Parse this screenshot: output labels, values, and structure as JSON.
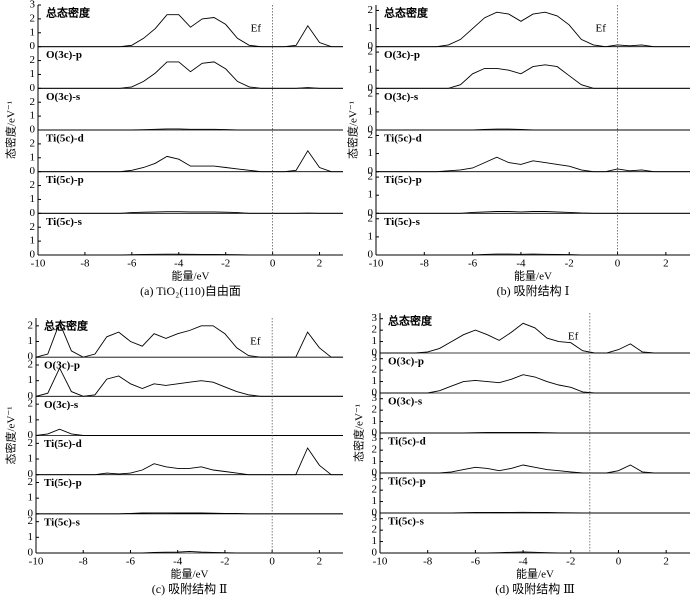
{
  "chart_data": [
    {
      "type": "line",
      "caption": "(a) TiO₂(110)自由面",
      "xlabel": "能量/eV",
      "ylabel": "态密度/eV⁻¹",
      "ef_label": "Ef",
      "ef_x": 0,
      "xlim": [
        -10,
        3
      ],
      "xticks": [
        -10,
        -8,
        -6,
        -4,
        -2,
        0,
        2
      ],
      "x": [
        -10,
        -9.5,
        -9,
        -8.5,
        -8,
        -7.5,
        -7,
        -6.5,
        -6,
        -5.5,
        -5,
        -4.5,
        -4,
        -3.5,
        -3,
        -2.5,
        -2,
        -1.5,
        -1,
        -0.5,
        0,
        0.5,
        1,
        1.5,
        2,
        2.5,
        3
      ],
      "series": [
        {
          "name": "总态密度",
          "color": "#000000",
          "ylim": [
            0,
            3
          ],
          "yticks": [
            0,
            1,
            2,
            3
          ],
          "values": [
            0,
            0,
            0,
            0,
            0,
            0,
            0,
            0,
            0.1,
            0.6,
            1.3,
            2.3,
            2.3,
            1.4,
            2.0,
            2.1,
            1.6,
            0.6,
            0.1,
            0,
            0,
            0,
            0.1,
            1.5,
            0.3,
            0,
            0
          ]
        },
        {
          "name": "O(3c)-p",
          "color": "#000000",
          "ylim": [
            0,
            3
          ],
          "yticks": [
            0,
            1,
            2
          ],
          "values": [
            0,
            0,
            0,
            0,
            0,
            0,
            0,
            0,
            0.1,
            0.5,
            1.1,
            1.9,
            1.9,
            1.2,
            1.8,
            1.9,
            1.4,
            0.5,
            0.1,
            0,
            0,
            0,
            0,
            0.05,
            0,
            0,
            0
          ]
        },
        {
          "name": "O(3c)-s",
          "color": "#000000",
          "ylim": [
            0,
            3
          ],
          "yticks": [
            0,
            1,
            2
          ],
          "values": [
            0,
            0,
            0,
            0,
            0,
            0,
            0,
            0,
            0,
            0.02,
            0.05,
            0.08,
            0.08,
            0.05,
            0.05,
            0.05,
            0.03,
            0,
            0,
            0,
            0,
            0,
            0,
            0,
            0,
            0,
            0
          ]
        },
        {
          "name": "Ti(5c)-d",
          "color": "#000000",
          "ylim": [
            0,
            3
          ],
          "yticks": [
            0,
            1,
            2
          ],
          "values": [
            0,
            0,
            0,
            0,
            0,
            0,
            0,
            0,
            0.1,
            0.3,
            0.6,
            1.1,
            0.9,
            0.4,
            0.4,
            0.4,
            0.3,
            0.2,
            0.1,
            0,
            0,
            0,
            0.1,
            1.5,
            0.3,
            0,
            0
          ]
        },
        {
          "name": "Ti(5c)-p",
          "color": "#000000",
          "ylim": [
            0,
            3
          ],
          "yticks": [
            0,
            1,
            2
          ],
          "values": [
            0,
            0,
            0,
            0,
            0,
            0,
            0,
            0,
            0.05,
            0.08,
            0.1,
            0.12,
            0.12,
            0.1,
            0.1,
            0.1,
            0.08,
            0.05,
            0,
            0,
            0,
            0,
            0,
            0.02,
            0,
            0,
            0
          ]
        },
        {
          "name": "Ti(5c)-s",
          "color": "#000000",
          "ylim": [
            0,
            3
          ],
          "yticks": [
            0,
            1,
            2
          ],
          "values": [
            0,
            0,
            0,
            0,
            0,
            0,
            0,
            0,
            0.02,
            0.04,
            0.05,
            0.06,
            0.06,
            0.05,
            0.04,
            0.04,
            0.03,
            0.02,
            0,
            0,
            0,
            0,
            0,
            0,
            0,
            0,
            0
          ]
        }
      ]
    },
    {
      "type": "line",
      "caption": "(b) 吸附结构 Ⅰ",
      "xlabel": "能量/eV",
      "ylabel": "态密度/eV⁻¹",
      "ef_label": "Ef",
      "ef_x": 0,
      "xlim": [
        -10,
        3
      ],
      "xticks": [
        -10,
        -8,
        -6,
        -4,
        -2,
        0,
        2
      ],
      "x": [
        -10,
        -9.5,
        -9,
        -8.5,
        -8,
        -7.5,
        -7,
        -6.5,
        -6,
        -5.5,
        -5,
        -4.5,
        -4,
        -3.5,
        -3,
        -2.5,
        -2,
        -1.5,
        -1,
        -0.5,
        0,
        0.5,
        1,
        1.5,
        2,
        2.5,
        3
      ],
      "series": [
        {
          "name": "总态密度",
          "color": "#000000",
          "ylim": [
            0,
            2.3
          ],
          "yticks": [
            0,
            1,
            2
          ],
          "values": [
            0,
            0,
            0,
            0,
            0,
            0,
            0.1,
            0.4,
            1.0,
            1.6,
            1.9,
            1.8,
            1.4,
            1.8,
            1.9,
            1.7,
            1.2,
            0.4,
            0.1,
            0,
            0.1,
            0.05,
            0.1,
            0,
            0,
            0,
            0
          ]
        },
        {
          "name": "O(3c)-p",
          "color": "#000000",
          "ylim": [
            0,
            2.3
          ],
          "yticks": [
            0,
            1,
            2
          ],
          "values": [
            0,
            0,
            0,
            0,
            0,
            0,
            0,
            0.2,
            0.8,
            1.1,
            1.1,
            1.0,
            0.8,
            1.2,
            1.3,
            1.2,
            0.7,
            0.2,
            0,
            0,
            0,
            0,
            0,
            0,
            0,
            0,
            0
          ]
        },
        {
          "name": "O(3c)-s",
          "color": "#000000",
          "ylim": [
            0,
            2.3
          ],
          "yticks": [
            0,
            1,
            2
          ],
          "values": [
            0,
            0,
            0,
            0,
            0,
            0,
            0,
            0,
            0,
            0.03,
            0.05,
            0.05,
            0.03,
            0,
            0,
            0,
            0,
            0,
            0,
            0,
            0,
            0,
            0,
            0,
            0,
            0,
            0
          ]
        },
        {
          "name": "Ti(5c)-d",
          "color": "#000000",
          "ylim": [
            0,
            2.3
          ],
          "yticks": [
            0,
            1,
            2
          ],
          "values": [
            0,
            0,
            0,
            0,
            0,
            0,
            0.05,
            0.1,
            0.2,
            0.5,
            0.8,
            0.5,
            0.4,
            0.6,
            0.5,
            0.4,
            0.3,
            0.1,
            0,
            0,
            0.15,
            0.05,
            0.1,
            0,
            0,
            0,
            0
          ]
        },
        {
          "name": "Ti(5c)-p",
          "color": "#000000",
          "ylim": [
            0,
            2.3
          ],
          "yticks": [
            0,
            1,
            2
          ],
          "values": [
            0,
            0,
            0,
            0,
            0,
            0,
            0,
            0,
            0.05,
            0.08,
            0.1,
            0.1,
            0.08,
            0.1,
            0.1,
            0.08,
            0.05,
            0.02,
            0,
            0,
            0,
            0,
            0,
            0,
            0,
            0,
            0
          ]
        },
        {
          "name": "Ti(5c)-s",
          "color": "#000000",
          "ylim": [
            0,
            2.3
          ],
          "yticks": [
            0,
            1,
            2
          ],
          "values": [
            0,
            0,
            0,
            0,
            0,
            0,
            0,
            0,
            0,
            0.03,
            0.05,
            0.05,
            0.04,
            0.05,
            0.04,
            0.03,
            0.02,
            0,
            0,
            0,
            0,
            0,
            0,
            0,
            0,
            0,
            0
          ]
        }
      ]
    },
    {
      "type": "line",
      "caption": "(c) 吸附结构 Ⅱ",
      "xlabel": "能量/eV",
      "ylabel": "态密度/eV⁻¹",
      "ef_label": "Ef",
      "ef_x": 0,
      "xlim": [
        -10,
        3
      ],
      "xticks": [
        -10,
        -8,
        -6,
        -4,
        -2,
        0,
        2
      ],
      "x": [
        -10,
        -9.5,
        -9,
        -8.5,
        -8,
        -7.5,
        -7,
        -6.5,
        -6,
        -5.5,
        -5,
        -4.5,
        -4,
        -3.5,
        -3,
        -2.5,
        -2,
        -1.5,
        -1,
        -0.5,
        0,
        0.5,
        1,
        1.5,
        2,
        2.5,
        3
      ],
      "series": [
        {
          "name": "总态密度",
          "color": "#000000",
          "ylim": [
            0,
            2.5
          ],
          "yticks": [
            0,
            1,
            2
          ],
          "values": [
            0,
            0.2,
            2.2,
            0.4,
            0,
            0.2,
            1.3,
            1.6,
            1.0,
            0.7,
            1.5,
            1.2,
            1.5,
            1.7,
            2.0,
            2.0,
            1.5,
            0.6,
            0.1,
            0,
            0,
            0,
            0,
            1.6,
            0.6,
            0,
            0
          ]
        },
        {
          "name": "O(3c)-p",
          "color": "#000000",
          "ylim": [
            0,
            2.5
          ],
          "yticks": [
            0,
            1,
            2
          ],
          "values": [
            0,
            0.2,
            1.8,
            0.3,
            0,
            0.1,
            1.1,
            1.3,
            0.8,
            0.5,
            0.8,
            0.7,
            0.8,
            0.9,
            1.0,
            0.9,
            0.6,
            0.3,
            0.1,
            0,
            0,
            0,
            0,
            0,
            0,
            0,
            0
          ]
        },
        {
          "name": "O(3c)-s",
          "color": "#000000",
          "ylim": [
            0,
            2.5
          ],
          "yticks": [
            0,
            1,
            2
          ],
          "values": [
            0,
            0.1,
            0.4,
            0.1,
            0,
            0,
            0,
            0,
            0,
            0,
            0,
            0,
            0,
            0,
            0,
            0,
            0,
            0,
            0,
            0,
            0,
            0,
            0,
            0,
            0,
            0,
            0
          ]
        },
        {
          "name": "Ti(5c)-d",
          "color": "#000000",
          "ylim": [
            0,
            2.5
          ],
          "yticks": [
            0,
            1,
            2
          ],
          "values": [
            0,
            0,
            0,
            0,
            0,
            0,
            0.1,
            0.05,
            0.1,
            0.3,
            0.7,
            0.5,
            0.4,
            0.4,
            0.5,
            0.3,
            0.2,
            0.1,
            0,
            0,
            0,
            0,
            0,
            1.7,
            0.6,
            0,
            0
          ]
        },
        {
          "name": "Ti(5c)-p",
          "color": "#000000",
          "ylim": [
            0,
            2.5
          ],
          "yticks": [
            0,
            1,
            2
          ],
          "values": [
            0,
            0,
            0,
            0,
            0,
            0,
            0,
            0,
            0.03,
            0.05,
            0.06,
            0.06,
            0.05,
            0.05,
            0.05,
            0.04,
            0.03,
            0.02,
            0,
            0,
            0,
            0,
            0,
            0,
            0,
            0,
            0
          ]
        },
        {
          "name": "Ti(5c)-s",
          "color": "#000000",
          "ylim": [
            0,
            2.5
          ],
          "yticks": [
            0,
            1,
            2
          ],
          "values": [
            0,
            0,
            0,
            0,
            0,
            0,
            0,
            0,
            0,
            0,
            0.03,
            0.05,
            0.06,
            0.1,
            0.06,
            0.04,
            0.02,
            0,
            0,
            0,
            0,
            0,
            0,
            0,
            0,
            0,
            0
          ]
        }
      ]
    },
    {
      "type": "line",
      "caption": "(d) 吸附结构 Ⅲ",
      "xlabel": "能量/eV",
      "ylabel": "态密度/eV⁻¹",
      "ef_label": "Ef",
      "ef_x": -1.2,
      "xlim": [
        -10,
        3
      ],
      "xticks": [
        -10,
        -8,
        -6,
        -4,
        -2,
        0,
        2
      ],
      "x": [
        -10,
        -9.5,
        -9,
        -8.5,
        -8,
        -7.5,
        -7,
        -6.5,
        -6,
        -5.5,
        -5,
        -4.5,
        -4,
        -3.5,
        -3,
        -2.5,
        -2,
        -1.5,
        -1,
        -0.5,
        0,
        0.5,
        1,
        1.5,
        2,
        2.5,
        3
      ],
      "series": [
        {
          "name": "总态密度",
          "color": "#000000",
          "ylim": [
            0,
            3.5
          ],
          "yticks": [
            0,
            1,
            2,
            3
          ],
          "values": [
            0,
            0,
            0,
            0,
            0.1,
            0.4,
            1.0,
            1.6,
            2.0,
            1.6,
            1.1,
            1.8,
            2.6,
            2.2,
            1.3,
            1.0,
            0.9,
            0.2,
            0,
            0,
            0.3,
            0.8,
            0.1,
            0,
            0,
            0,
            0
          ]
        },
        {
          "name": "O(3c)-p",
          "color": "#000000",
          "ylim": [
            0,
            3.5
          ],
          "yticks": [
            0,
            1,
            2,
            3
          ],
          "values": [
            0,
            0,
            0,
            0,
            0,
            0.2,
            0.6,
            1.0,
            1.1,
            1.0,
            0.9,
            1.2,
            1.6,
            1.4,
            1.0,
            0.7,
            0.5,
            0.1,
            0,
            0,
            0,
            0,
            0,
            0,
            0,
            0,
            0
          ]
        },
        {
          "name": "O(3c)-s",
          "color": "#000000",
          "ylim": [
            0,
            3.5
          ],
          "yticks": [
            0,
            1,
            2,
            3
          ],
          "values": [
            0,
            0,
            0,
            0,
            0,
            0,
            0,
            0,
            0.03,
            0.05,
            0.05,
            0.05,
            0.05,
            0.04,
            0.03,
            0,
            0,
            0,
            0,
            0,
            0,
            0,
            0,
            0,
            0,
            0,
            0
          ]
        },
        {
          "name": "Ti(5c)-d",
          "color": "#000000",
          "ylim": [
            0,
            3.5
          ],
          "yticks": [
            0,
            1,
            2,
            3
          ],
          "values": [
            0,
            0,
            0,
            0,
            0,
            0,
            0.1,
            0.3,
            0.5,
            0.4,
            0.2,
            0.4,
            0.7,
            0.5,
            0.3,
            0.2,
            0.1,
            0,
            0,
            0,
            0.2,
            0.7,
            0.1,
            0,
            0,
            0,
            0
          ]
        },
        {
          "name": "Ti(5c)-p",
          "color": "#000000",
          "ylim": [
            0,
            3.5
          ],
          "yticks": [
            0,
            1,
            2,
            3
          ],
          "values": [
            0,
            0,
            0,
            0,
            0,
            0,
            0,
            0.03,
            0.05,
            0.05,
            0.04,
            0.05,
            0.06,
            0.05,
            0.04,
            0.03,
            0.02,
            0,
            0,
            0,
            0,
            0,
            0,
            0,
            0,
            0,
            0
          ]
        },
        {
          "name": "Ti(5c)-s",
          "color": "#000000",
          "ylim": [
            0,
            3.5
          ],
          "yticks": [
            0,
            1,
            2,
            3
          ],
          "values": [
            0,
            0,
            0,
            0,
            0,
            0,
            0,
            0,
            0,
            0,
            0.03,
            0.06,
            0.1,
            0.06,
            0.03,
            0,
            0,
            0,
            0,
            0,
            0,
            0,
            0,
            0,
            0,
            0,
            0
          ]
        }
      ]
    }
  ]
}
